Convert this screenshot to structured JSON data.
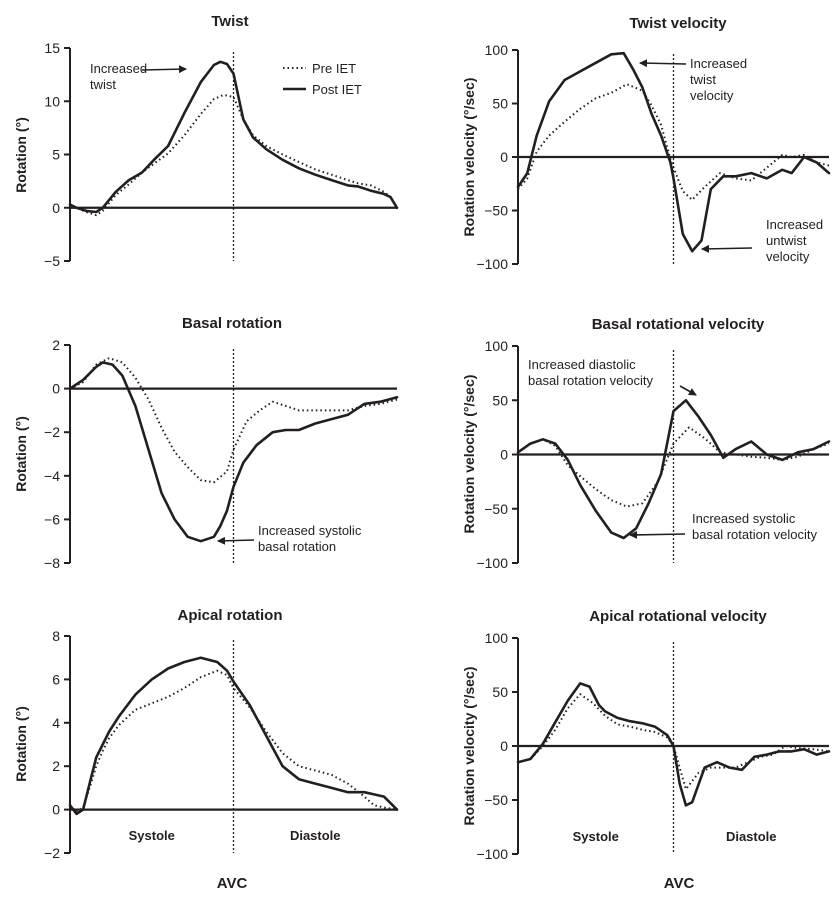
{
  "legend": {
    "entries": [
      {
        "label": "Pre IET",
        "style": "dotted"
      },
      {
        "label": "Post IET",
        "style": "solid"
      }
    ],
    "placement": "top-right of Twist panel"
  },
  "colors": {
    "ink": "#231f20",
    "background": "#ffffff"
  },
  "axis_bottom_labels": {
    "left": "AVC",
    "right": "AVC"
  },
  "chart_data": [
    {
      "type": "line",
      "title": "Twist",
      "ylabel": "Rotation (°)",
      "ylim": [
        -5,
        15
      ],
      "yticks": [
        -5,
        0,
        5,
        10,
        15
      ],
      "xlim": [
        0,
        100
      ],
      "avc": 50,
      "phase_labels": [],
      "series": [
        {
          "name": "Pre IET",
          "style": "dotted",
          "x": [
            0,
            2,
            5,
            8,
            10,
            14,
            18,
            22,
            26,
            30,
            35,
            40,
            44,
            47,
            50,
            53,
            56,
            60,
            65,
            70,
            75,
            80,
            85,
            88,
            92,
            96,
            98,
            100
          ],
          "values": [
            0.3,
            0,
            -0.4,
            -0.7,
            -0.3,
            1.2,
            2.2,
            3.3,
            4.2,
            5.1,
            6.8,
            8.8,
            10.2,
            10.6,
            10.4,
            8.3,
            6.8,
            5.8,
            5.0,
            4.3,
            3.6,
            3.1,
            2.6,
            2.3,
            2.1,
            1.5,
            1.0,
            0
          ]
        },
        {
          "name": "Post IET",
          "style": "solid",
          "x": [
            0,
            2,
            5,
            8,
            10,
            14,
            18,
            22,
            26,
            30,
            35,
            40,
            44,
            46,
            48,
            50,
            53,
            56,
            60,
            65,
            70,
            75,
            80,
            85,
            88,
            92,
            96,
            98,
            100
          ],
          "values": [
            0.3,
            0,
            -0.3,
            -0.4,
            0,
            1.5,
            2.6,
            3.3,
            4.6,
            5.8,
            8.9,
            11.8,
            13.4,
            13.7,
            13.5,
            12.6,
            8.3,
            6.6,
            5.5,
            4.5,
            3.7,
            3.1,
            2.6,
            2.1,
            2.0,
            1.6,
            1.3,
            1.0,
            0
          ]
        }
      ],
      "annotations": [
        {
          "text": "Increased twist",
          "lines": [
            "Increased",
            "twist"
          ]
        }
      ]
    },
    {
      "type": "line",
      "title": "Twist velocity",
      "ylabel": "Rotation velocity (°/sec)",
      "ylim": [
        -100,
        100
      ],
      "yticks": [
        -100,
        -50,
        0,
        50,
        100
      ],
      "xlim": [
        0,
        100
      ],
      "avc": 50,
      "phase_labels": [],
      "series": [
        {
          "name": "Pre IET",
          "style": "dotted",
          "x": [
            0,
            3,
            6,
            10,
            15,
            20,
            25,
            30,
            35,
            40,
            43,
            46,
            49,
            50,
            53,
            56,
            60,
            65,
            70,
            75,
            80,
            85,
            88,
            92,
            96,
            100
          ],
          "values": [
            -30,
            -20,
            5,
            20,
            33,
            45,
            55,
            60,
            68,
            62,
            48,
            30,
            -2,
            -10,
            -32,
            -40,
            -28,
            -15,
            -20,
            -22,
            -10,
            2,
            0,
            2,
            -5,
            -8
          ]
        },
        {
          "name": "Post IET",
          "style": "solid",
          "x": [
            0,
            3,
            6,
            10,
            15,
            20,
            25,
            30,
            34,
            37,
            40,
            43,
            46,
            49,
            50,
            53,
            56,
            59,
            62,
            66,
            70,
            75,
            80,
            85,
            88,
            92,
            96,
            100
          ],
          "values": [
            -28,
            -15,
            20,
            52,
            72,
            80,
            88,
            96,
            97,
            82,
            65,
            40,
            20,
            -5,
            -20,
            -72,
            -88,
            -78,
            -30,
            -18,
            -18,
            -15,
            -20,
            -12,
            -15,
            0,
            -5,
            -15
          ]
        }
      ],
      "annotations": [
        {
          "text": "Increased twist velocity",
          "lines": [
            "Increased",
            "twist",
            "velocity"
          ]
        },
        {
          "text": "Increased untwist velocity",
          "lines": [
            "Increased",
            "untwist",
            "velocity"
          ]
        }
      ]
    },
    {
      "type": "line",
      "title": "Basal rotation",
      "ylabel": "Rotation (°)",
      "ylim": [
        -8,
        2
      ],
      "yticks": [
        -8,
        -6,
        -4,
        -2,
        0,
        2
      ],
      "xlim": [
        0,
        100
      ],
      "avc": 50,
      "phase_labels": [],
      "series": [
        {
          "name": "Pre IET",
          "style": "dotted",
          "x": [
            0,
            4,
            8,
            12,
            16,
            20,
            24,
            28,
            32,
            36,
            40,
            44,
            48,
            50,
            54,
            58,
            62,
            66,
            70,
            75,
            80,
            85,
            90,
            95,
            100
          ],
          "values": [
            0,
            0.3,
            1.1,
            1.4,
            1.2,
            0.5,
            -0.5,
            -1.8,
            -2.9,
            -3.6,
            -4.2,
            -4.3,
            -3.8,
            -2.8,
            -1.5,
            -1.0,
            -0.6,
            -0.8,
            -1.0,
            -1.0,
            -1.0,
            -1.0,
            -0.8,
            -0.7,
            -0.5
          ]
        },
        {
          "name": "Post IET",
          "style": "solid",
          "x": [
            0,
            4,
            8,
            10,
            13,
            16,
            20,
            24,
            28,
            32,
            36,
            40,
            44,
            46,
            48,
            50,
            53,
            57,
            62,
            66,
            70,
            75,
            80,
            85,
            90,
            95,
            100
          ],
          "values": [
            0,
            0.4,
            1.0,
            1.2,
            1.1,
            0.6,
            -0.8,
            -2.8,
            -4.8,
            -6.0,
            -6.8,
            -7.0,
            -6.8,
            -6.3,
            -5.6,
            -4.5,
            -3.4,
            -2.6,
            -2.0,
            -1.9,
            -1.9,
            -1.6,
            -1.4,
            -1.2,
            -0.7,
            -0.6,
            -0.4
          ]
        }
      ],
      "annotations": [
        {
          "text": "Increased systolic basal rotation",
          "lines": [
            "Increased systolic",
            "basal rotation"
          ]
        }
      ]
    },
    {
      "type": "line",
      "title": "Basal rotational velocity",
      "ylabel": "Rotation velocity (°/sec)",
      "ylim": [
        -100,
        100
      ],
      "yticks": [
        -100,
        -50,
        0,
        50,
        100
      ],
      "xlim": [
        0,
        100
      ],
      "avc": 50,
      "phase_labels": [],
      "series": [
        {
          "name": "Pre IET",
          "style": "dotted",
          "x": [
            0,
            4,
            8,
            12,
            16,
            20,
            25,
            30,
            35,
            40,
            45,
            50,
            55,
            60,
            65,
            70,
            75,
            80,
            85,
            90,
            95,
            100
          ],
          "values": [
            2,
            10,
            14,
            8,
            -10,
            -20,
            -32,
            -42,
            -48,
            -45,
            -25,
            10,
            25,
            15,
            2,
            0,
            -2,
            -3,
            -5,
            -2,
            5,
            10
          ]
        },
        {
          "name": "Post IET",
          "style": "solid",
          "x": [
            0,
            4,
            8,
            12,
            16,
            20,
            25,
            30,
            34,
            38,
            42,
            46,
            50,
            54,
            58,
            62,
            66,
            70,
            75,
            80,
            85,
            90,
            95,
            100
          ],
          "values": [
            2,
            10,
            14,
            10,
            -5,
            -28,
            -52,
            -72,
            -77,
            -68,
            -45,
            -18,
            40,
            50,
            35,
            18,
            -3,
            5,
            12,
            0,
            -5,
            2,
            5,
            12
          ]
        }
      ],
      "annotations": [
        {
          "text": "Increased diastolic basal rotation velocity",
          "lines": [
            "Increased diastolic",
            "basal rotation velocity"
          ]
        },
        {
          "text": "Increased systolic basal rotation velocity",
          "lines": [
            "Increased systolic",
            "basal rotation velocity"
          ]
        }
      ]
    },
    {
      "type": "line",
      "title": "Apical rotation",
      "ylabel": "Rotation (°)",
      "ylim": [
        -2,
        8
      ],
      "yticks": [
        -2,
        0,
        2,
        4,
        6,
        8
      ],
      "xlim": [
        0,
        100
      ],
      "avc": 50,
      "phase_labels": [
        "Systole",
        "Diastole"
      ],
      "series": [
        {
          "name": "Pre IET",
          "style": "dotted",
          "x": [
            0,
            2,
            4,
            6,
            8,
            10,
            12,
            15,
            20,
            25,
            30,
            35,
            40,
            45,
            48,
            50,
            55,
            60,
            65,
            70,
            75,
            80,
            85,
            90,
            93,
            96,
            100
          ],
          "values": [
            0.2,
            -0.1,
            0.1,
            1.0,
            2.0,
            2.7,
            3.3,
            3.9,
            4.6,
            4.9,
            5.2,
            5.6,
            6.1,
            6.4,
            6.2,
            5.6,
            4.7,
            3.6,
            2.6,
            2.0,
            1.8,
            1.6,
            1.2,
            0.6,
            0.2,
            0.1,
            0
          ]
        },
        {
          "name": "Post IET",
          "style": "solid",
          "x": [
            0,
            2,
            4,
            6,
            8,
            10,
            12,
            15,
            20,
            25,
            30,
            35,
            40,
            45,
            48,
            50,
            55,
            60,
            65,
            70,
            75,
            80,
            85,
            90,
            93,
            96,
            100
          ],
          "values": [
            0.2,
            -0.2,
            0,
            1.2,
            2.4,
            3.0,
            3.6,
            4.3,
            5.3,
            6.0,
            6.5,
            6.8,
            7.0,
            6.8,
            6.4,
            5.9,
            4.8,
            3.4,
            2.0,
            1.4,
            1.2,
            1.0,
            0.8,
            0.8,
            0.7,
            0.6,
            0
          ]
        }
      ],
      "annotations": []
    },
    {
      "type": "line",
      "title": "Apical rotational velocity",
      "ylabel": "Rotation velocity (°/sec)",
      "ylim": [
        -100,
        100
      ],
      "yticks": [
        -100,
        -50,
        0,
        50,
        100
      ],
      "xlim": [
        0,
        100
      ],
      "avc": 50,
      "phase_labels": [
        "Systole",
        "Diastole"
      ],
      "series": [
        {
          "name": "Pre IET",
          "style": "dotted",
          "x": [
            0,
            4,
            8,
            12,
            16,
            20,
            24,
            28,
            32,
            36,
            40,
            44,
            48,
            50,
            52,
            54,
            58,
            62,
            66,
            70,
            74,
            78,
            82,
            86,
            90,
            95,
            100
          ],
          "values": [
            -15,
            -12,
            0,
            15,
            35,
            48,
            40,
            28,
            20,
            18,
            15,
            13,
            8,
            0,
            -20,
            -40,
            -25,
            -20,
            -20,
            -20,
            -15,
            -10,
            -8,
            0,
            -2,
            -3,
            -5
          ]
        },
        {
          "name": "Post IET",
          "style": "solid",
          "x": [
            0,
            4,
            8,
            12,
            16,
            20,
            23,
            26,
            28,
            32,
            36,
            40,
            44,
            48,
            50,
            52,
            54,
            56,
            60,
            64,
            68,
            72,
            76,
            80,
            84,
            88,
            92,
            96,
            100
          ],
          "values": [
            -15,
            -12,
            2,
            22,
            42,
            58,
            55,
            38,
            32,
            26,
            23,
            21,
            18,
            10,
            0,
            -35,
            -55,
            -52,
            -20,
            -15,
            -20,
            -22,
            -10,
            -8,
            -5,
            -5,
            -3,
            -8,
            -5
          ]
        }
      ],
      "annotations": []
    }
  ]
}
